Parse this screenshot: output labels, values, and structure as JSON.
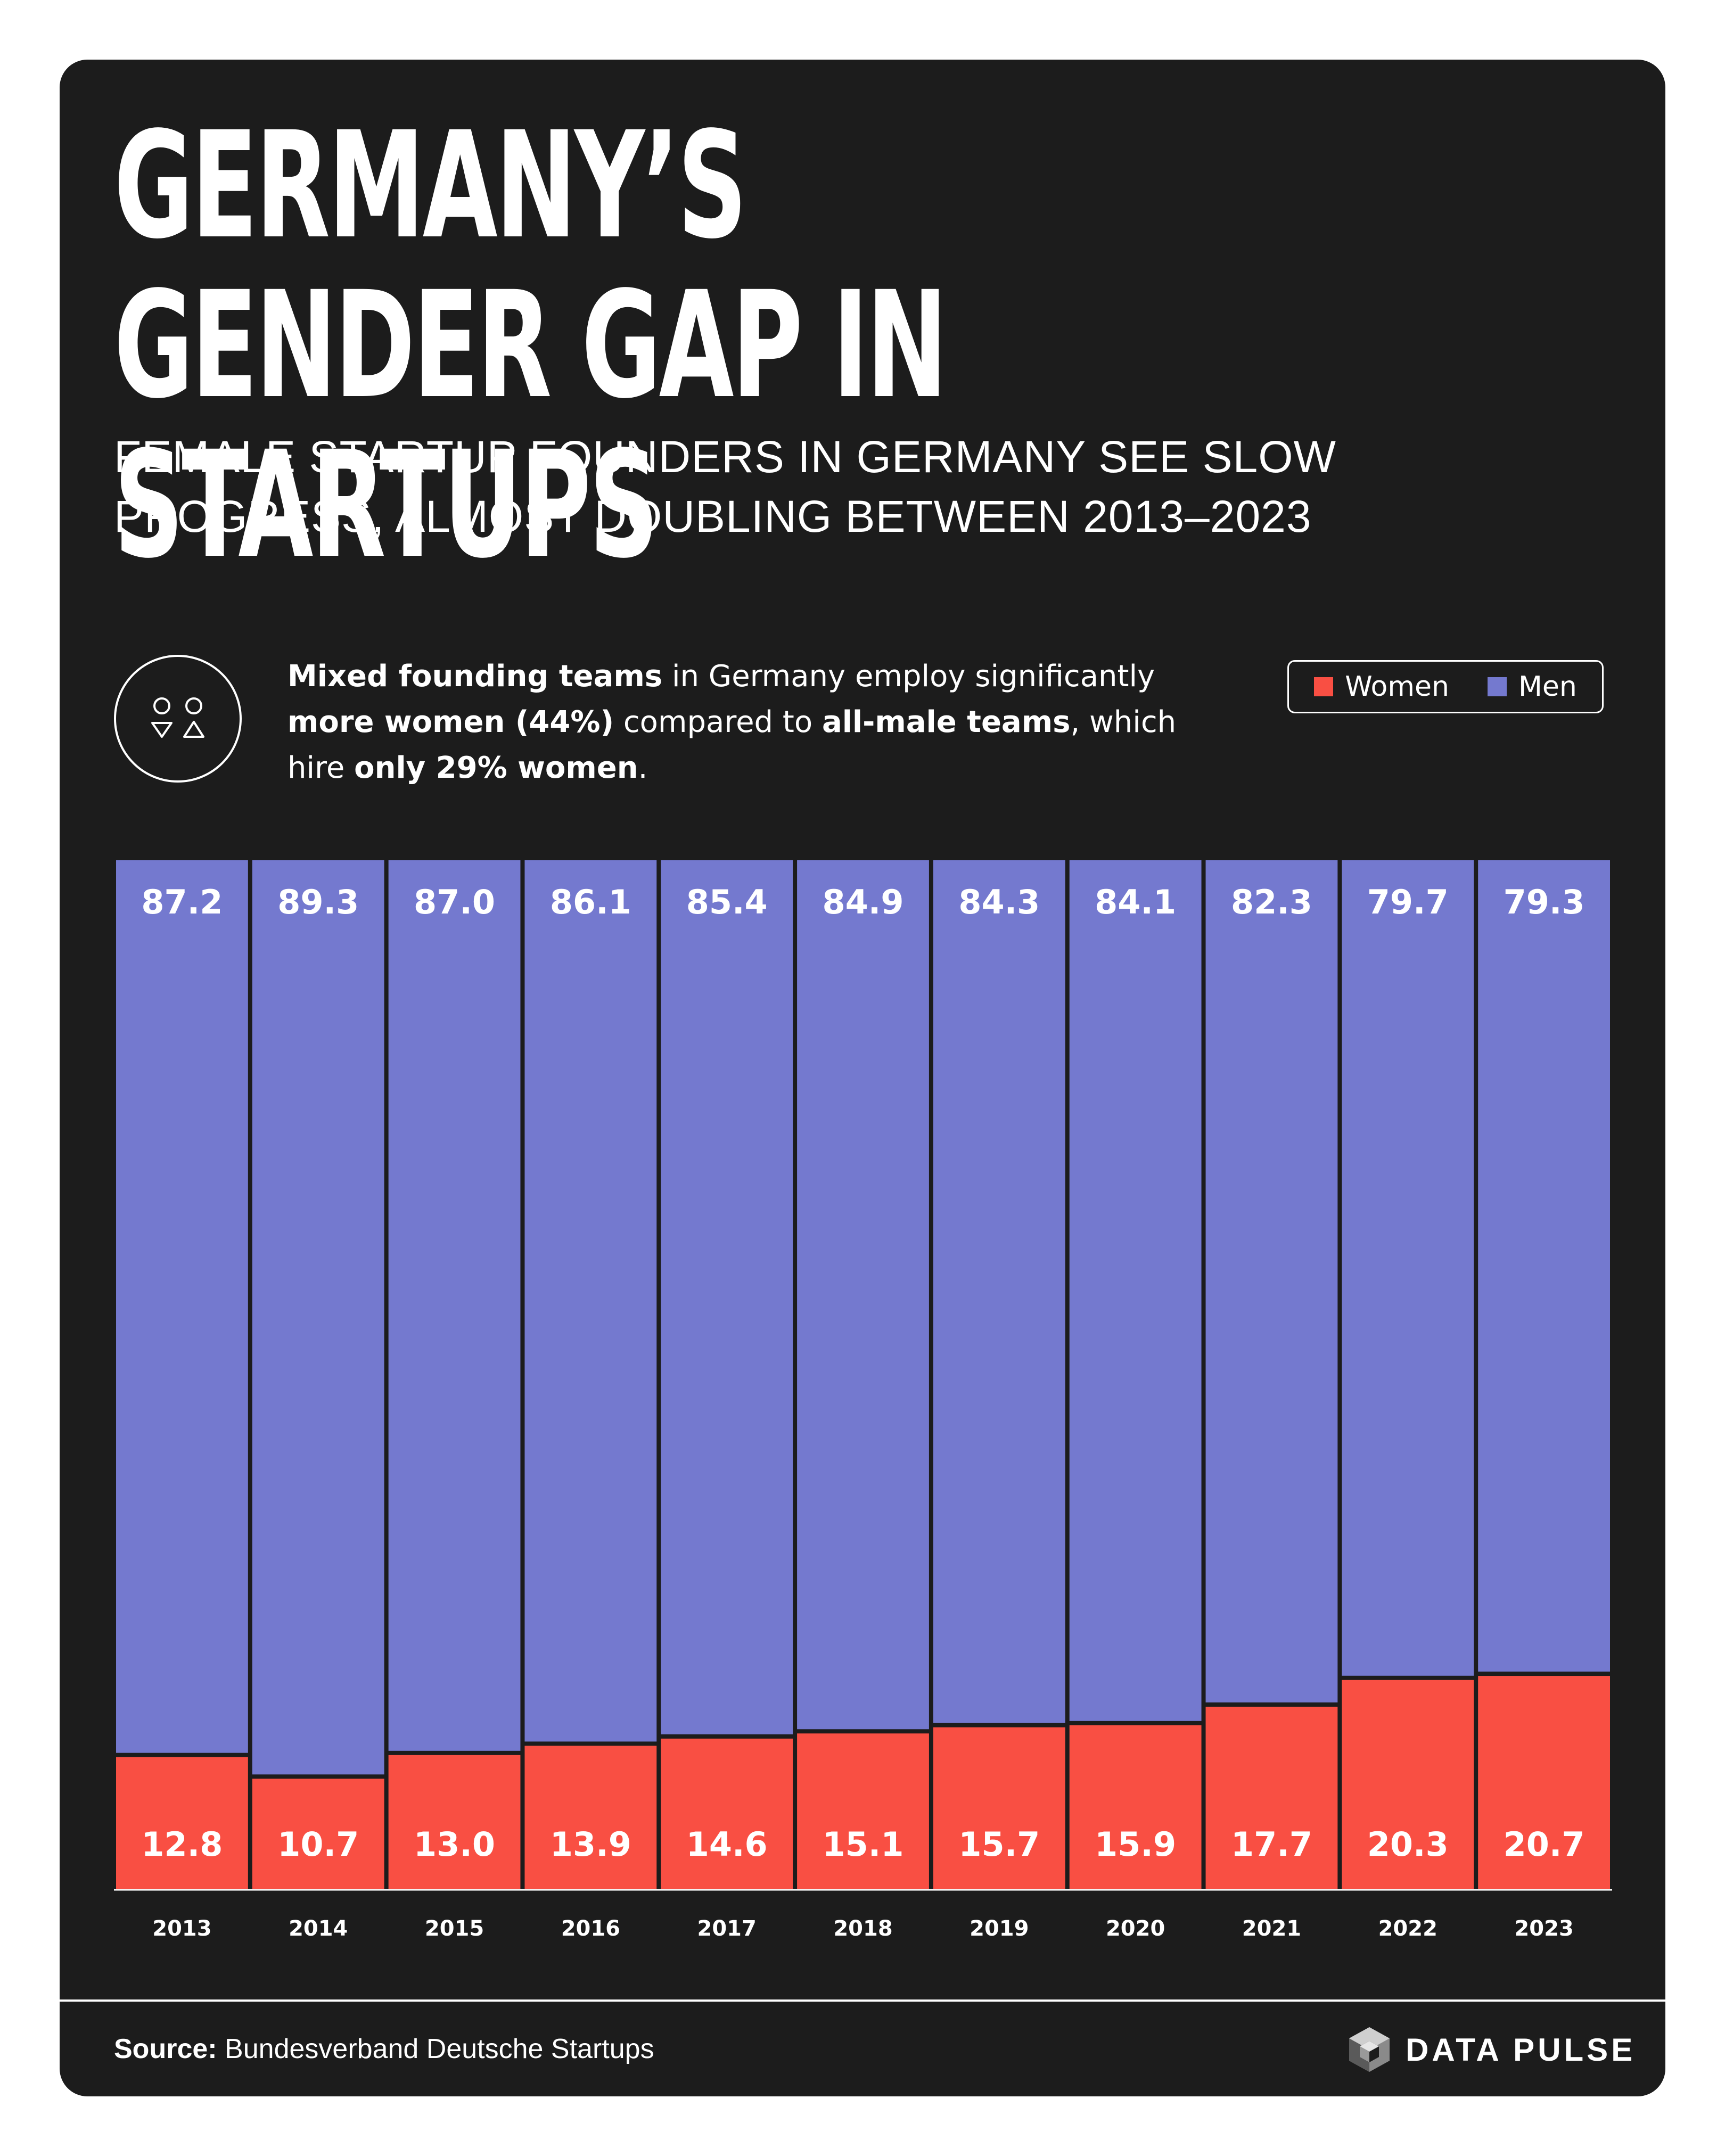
{
  "title": "GERMANY’S GENDER GAP IN\nSTARTUPS",
  "subtitle": "FEMALE STARTUP FOUNDERS IN GERMANY SEE SLOW PROGRESS, ALMOST DOUBLING BETWEEN 2013–2023",
  "callout": {
    "p1": "Mixed founding teams",
    "p2": " in Germany employ significantly ",
    "p3": "more women (44%)",
    "p4": " compared to ",
    "p5": "all-male teams",
    "p6": ", which hire ",
    "p7": "only 29% women",
    "p8": "."
  },
  "colors": {
    "women": "#f94f43",
    "men": "#7479cf",
    "background": "#1c1c1c"
  },
  "chart_data": {
    "type": "bar",
    "stacked": true,
    "normalized": true,
    "categories": [
      "2013",
      "2014",
      "2015",
      "2016",
      "2017",
      "2018",
      "2019",
      "2020",
      "2021",
      "2022",
      "2023"
    ],
    "series": [
      {
        "name": "Women",
        "values": [
          12.8,
          10.7,
          13.0,
          13.9,
          14.6,
          15.1,
          15.7,
          15.9,
          17.7,
          20.3,
          20.7
        ]
      },
      {
        "name": "Men",
        "values": [
          87.2,
          89.3,
          87.0,
          86.1,
          85.4,
          84.9,
          84.3,
          84.1,
          82.3,
          79.7,
          79.3
        ]
      }
    ],
    "value_labels": {
      "Women": [
        "12.8",
        "10.7",
        "13.0",
        "13.9",
        "14.6",
        "15.1",
        "15.7",
        "15.9",
        "17.7",
        "20.3",
        "20.7"
      ],
      "Men": [
        "87.2",
        "89.3",
        "87.0",
        "86.1",
        "85.4",
        "84.9",
        "84.3",
        "84.1",
        "82.3",
        "79.7",
        "79.3"
      ]
    },
    "ylim": [
      0,
      100
    ],
    "legend": {
      "position": "top-right",
      "labels": [
        "Women",
        "Men"
      ]
    },
    "grid": false
  },
  "footer": {
    "source_label": "Source:",
    "source_text": " Bundesverband Deutsche Startups",
    "brand": "DATA PULSE"
  }
}
